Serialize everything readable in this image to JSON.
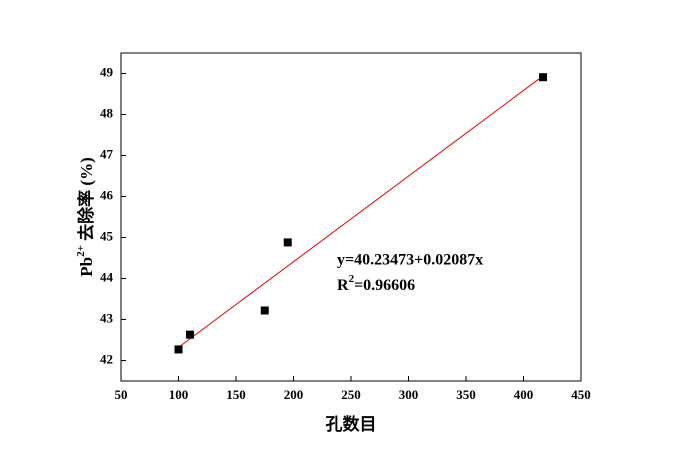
{
  "chart_data": {
    "type": "scatter",
    "x": [
      100,
      110,
      175,
      195,
      417
    ],
    "values": [
      42.27,
      42.63,
      43.22,
      44.88,
      48.91
    ],
    "color": "#000000",
    "fit": {
      "x": [
        100,
        417
      ],
      "values": [
        42.32,
        48.94
      ],
      "color": "#e00000"
    },
    "xlabel": "孔数目",
    "ylabel": {
      "text": "Pb",
      "sup": "2+",
      "rest": " 去除率 (%)"
    },
    "annotation": {
      "equation": "y=40.23473+0.02087x",
      "r": "R",
      "sup": "2",
      "rest": "=0.96606"
    },
    "xlim": [
      50,
      450
    ],
    "xticks": [
      50,
      100,
      150,
      200,
      250,
      300,
      350,
      400,
      450
    ],
    "ylim": [
      41.5,
      49.5
    ],
    "yticks": [
      42,
      43,
      44,
      45,
      46,
      47,
      48,
      49
    ],
    "grid": false
  }
}
